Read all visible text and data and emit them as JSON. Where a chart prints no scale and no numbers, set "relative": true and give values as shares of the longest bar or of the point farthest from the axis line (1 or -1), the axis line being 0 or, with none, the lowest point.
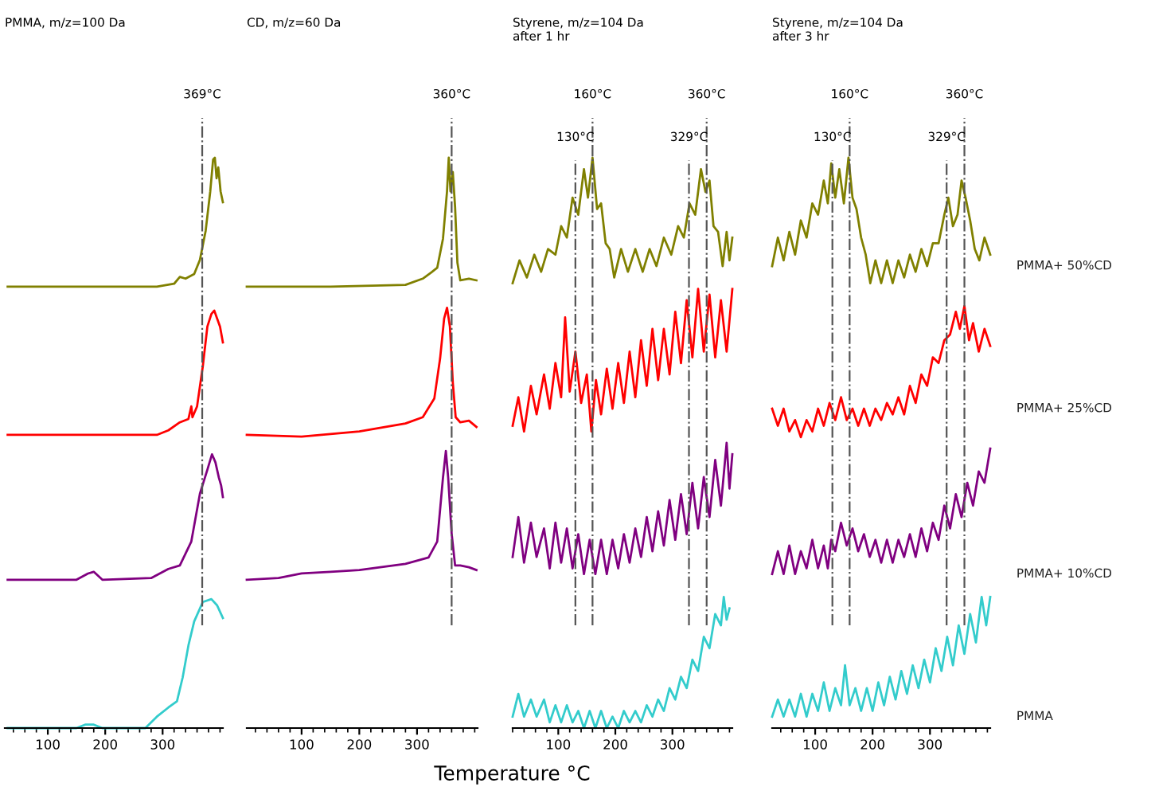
{
  "chart_data": [
    {
      "type": "line",
      "title": "PMMA, m/z=100 Da",
      "relative": true,
      "xlim": [
        25,
        405
      ],
      "xticks": [
        100,
        200,
        300
      ],
      "tick_labels": "x",
      "grid": false,
      "ref_lines": [
        {
          "axis": "x",
          "value": 369,
          "label": "369°C",
          "color": "#555555"
        }
      ],
      "series": [
        {
          "color": "#808000",
          "x": [
            30,
            150,
            290,
            320,
            330,
            340,
            355,
            365,
            375,
            383,
            388,
            391,
            394,
            397,
            401,
            405
          ],
          "values": [
            0.774,
            0.774,
            0.774,
            0.779,
            0.791,
            0.788,
            0.796,
            0.821,
            0.872,
            0.941,
            0.997,
            1.0,
            0.964,
            0.983,
            0.941,
            0.922
          ]
        },
        {
          "color": "#ff0000",
          "x": [
            30,
            150,
            290,
            310,
            330,
            345,
            350,
            352,
            360,
            370,
            378,
            385,
            390,
            395,
            400,
            405
          ],
          "values": [
            0.514,
            0.514,
            0.514,
            0.522,
            0.536,
            0.542,
            0.564,
            0.545,
            0.564,
            0.634,
            0.704,
            0.726,
            0.732,
            0.718,
            0.704,
            0.676
          ]
        },
        {
          "color": "#800080",
          "x": [
            30,
            150,
            170,
            180,
            195,
            280,
            310,
            330,
            350,
            365,
            378,
            386,
            392,
            398,
            402,
            405
          ],
          "values": [
            0.26,
            0.26,
            0.271,
            0.274,
            0.26,
            0.263,
            0.279,
            0.285,
            0.327,
            0.411,
            0.453,
            0.48,
            0.466,
            0.439,
            0.425,
            0.405
          ]
        },
        {
          "color": "#33cccc",
          "x": [
            30,
            150,
            165,
            180,
            195,
            270,
            290,
            310,
            325,
            335,
            345,
            355,
            370,
            385,
            395,
            405
          ],
          "values": [
            0,
            0,
            0.006,
            0.006,
            0,
            0,
            0.02,
            0.036,
            0.047,
            0.089,
            0.145,
            0.187,
            0.221,
            0.226,
            0.215,
            0.193
          ]
        }
      ]
    },
    {
      "type": "line",
      "title": "CD, m/z=60 Da",
      "xlabel": "Temperature °C",
      "relative": true,
      "xlim": [
        5,
        405
      ],
      "xticks": [
        100,
        200,
        300
      ],
      "tick_labels": "x",
      "grid": false,
      "ref_lines": [
        {
          "axis": "x",
          "value": 360,
          "label": "360°C",
          "color": "#555555"
        }
      ],
      "series": [
        {
          "color": "#808000",
          "x": [
            5,
            150,
            280,
            310,
            325,
            335,
            345,
            352,
            355,
            358,
            362,
            366,
            370,
            375,
            390,
            403
          ],
          "values": [
            0.774,
            0.774,
            0.777,
            0.788,
            0.799,
            0.807,
            0.858,
            0.941,
            1.0,
            0.941,
            0.975,
            0.913,
            0.816,
            0.785,
            0.788,
            0.785
          ]
        },
        {
          "color": "#ff0000",
          "x": [
            5,
            100,
            200,
            280,
            310,
            330,
            340,
            347,
            352,
            357,
            362,
            367,
            375,
            390,
            403
          ],
          "values": [
            0.514,
            0.511,
            0.52,
            0.534,
            0.545,
            0.578,
            0.648,
            0.718,
            0.737,
            0.704,
            0.606,
            0.545,
            0.536,
            0.539,
            0.528
          ]
        },
        {
          "color": "#800080",
          "x": [
            5,
            60,
            100,
            150,
            200,
            280,
            320,
            335,
            345,
            350,
            354,
            360,
            366,
            375,
            390,
            403
          ],
          "values": [
            0.26,
            0.263,
            0.271,
            0.274,
            0.277,
            0.288,
            0.299,
            0.327,
            0.439,
            0.486,
            0.439,
            0.341,
            0.285,
            0.285,
            0.282,
            0.277
          ]
        }
      ]
    },
    {
      "type": "line",
      "title": "Styrene, m/z=104 Da\nafter 1 hr",
      "relative": true,
      "xlim": [
        20,
        405
      ],
      "xticks": [
        100,
        200,
        300
      ],
      "tick_labels": "x",
      "grid": false,
      "ref_lines": [
        {
          "axis": "x",
          "value": 160,
          "label": "160°C",
          "color": "#555555"
        },
        {
          "axis": "x",
          "value": 130,
          "label": "130°C",
          "color": "#555555"
        },
        {
          "axis": "x",
          "value": 360,
          "label": "360°C",
          "color": "#555555"
        },
        {
          "axis": "x",
          "value": 329,
          "label": "329°C",
          "color": "#555555"
        }
      ],
      "series": [
        {
          "color": "#808000",
          "x": [
            20,
            32,
            45,
            58,
            70,
            82,
            95,
            105,
            115,
            125,
            135,
            145,
            152,
            160,
            168,
            175,
            183,
            190,
            198,
            210,
            222,
            235,
            248,
            260,
            272,
            285,
            298,
            310,
            320,
            330,
            340,
            350,
            358,
            365,
            372,
            380,
            388,
            395,
            400,
            405
          ],
          "values": [
            0.78,
            0.82,
            0.79,
            0.83,
            0.8,
            0.84,
            0.83,
            0.88,
            0.86,
            0.93,
            0.9,
            0.98,
            0.93,
            1.0,
            0.91,
            0.92,
            0.85,
            0.84,
            0.79,
            0.84,
            0.8,
            0.84,
            0.8,
            0.84,
            0.81,
            0.86,
            0.83,
            0.88,
            0.86,
            0.92,
            0.9,
            0.98,
            0.94,
            0.96,
            0.88,
            0.87,
            0.81,
            0.87,
            0.82,
            0.86
          ]
        },
        {
          "color": "#ff0000",
          "x": [
            20,
            30,
            40,
            52,
            62,
            75,
            85,
            95,
            105,
            112,
            120,
            130,
            140,
            150,
            158,
            166,
            175,
            185,
            195,
            205,
            215,
            225,
            235,
            245,
            255,
            265,
            275,
            285,
            295,
            305,
            315,
            325,
            335,
            345,
            355,
            365,
            375,
            385,
            395,
            405
          ],
          "values": [
            0.53,
            0.58,
            0.52,
            0.6,
            0.55,
            0.62,
            0.56,
            0.64,
            0.58,
            0.72,
            0.59,
            0.66,
            0.57,
            0.62,
            0.52,
            0.61,
            0.55,
            0.63,
            0.56,
            0.64,
            0.57,
            0.66,
            0.58,
            0.68,
            0.6,
            0.7,
            0.61,
            0.7,
            0.62,
            0.73,
            0.64,
            0.75,
            0.65,
            0.77,
            0.66,
            0.76,
            0.65,
            0.75,
            0.66,
            0.77
          ]
        },
        {
          "color": "#800080",
          "x": [
            20,
            30,
            40,
            52,
            62,
            75,
            85,
            95,
            105,
            115,
            125,
            135,
            145,
            155,
            165,
            175,
            185,
            195,
            205,
            215,
            225,
            235,
            245,
            255,
            265,
            275,
            285,
            295,
            305,
            315,
            325,
            335,
            345,
            355,
            365,
            375,
            385,
            395,
            400,
            405
          ],
          "values": [
            0.3,
            0.37,
            0.29,
            0.36,
            0.3,
            0.35,
            0.28,
            0.36,
            0.29,
            0.35,
            0.28,
            0.34,
            0.27,
            0.33,
            0.27,
            0.33,
            0.27,
            0.33,
            0.28,
            0.34,
            0.29,
            0.35,
            0.3,
            0.37,
            0.31,
            0.38,
            0.32,
            0.4,
            0.33,
            0.41,
            0.34,
            0.43,
            0.35,
            0.44,
            0.37,
            0.47,
            0.39,
            0.5,
            0.42,
            0.48
          ]
        },
        {
          "color": "#33cccc",
          "x": [
            20,
            30,
            40,
            52,
            62,
            75,
            85,
            95,
            105,
            115,
            125,
            135,
            145,
            155,
            165,
            175,
            185,
            195,
            205,
            215,
            225,
            235,
            245,
            255,
            265,
            275,
            285,
            295,
            305,
            315,
            325,
            335,
            345,
            355,
            365,
            375,
            385,
            390,
            395,
            400
          ],
          "values": [
            0.02,
            0.06,
            0.02,
            0.05,
            0.02,
            0.05,
            0.01,
            0.04,
            0.01,
            0.04,
            0.01,
            0.03,
            0.0,
            0.03,
            0.0,
            0.03,
            0.0,
            0.02,
            0.0,
            0.03,
            0.01,
            0.03,
            0.01,
            0.04,
            0.02,
            0.05,
            0.03,
            0.07,
            0.05,
            0.09,
            0.07,
            0.12,
            0.1,
            0.16,
            0.14,
            0.2,
            0.18,
            0.23,
            0.19,
            0.21
          ]
        }
      ]
    },
    {
      "type": "line",
      "title": "Styrene, m/z=104 Da\nafter 3 hr",
      "relative": true,
      "xlim": [
        25,
        405
      ],
      "xticks": [
        100,
        200,
        300
      ],
      "tick_labels": "x",
      "grid": false,
      "ref_lines": [
        {
          "axis": "x",
          "value": 160,
          "label": "160°C",
          "color": "#555555"
        },
        {
          "axis": "x",
          "value": 130,
          "label": "130°C",
          "color": "#555555"
        },
        {
          "axis": "x",
          "value": 360,
          "label": "360°C",
          "color": "#555555"
        },
        {
          "axis": "x",
          "value": 329,
          "label": "329°C",
          "color": "#555555"
        }
      ],
      "series": [
        {
          "name": "PMMA+ 50%CD",
          "color": "#808000",
          "x": [
            25,
            35,
            45,
            55,
            65,
            75,
            85,
            95,
            105,
            115,
            122,
            128,
            135,
            142,
            150,
            158,
            165,
            172,
            180,
            188,
            196,
            205,
            215,
            225,
            235,
            245,
            255,
            265,
            275,
            285,
            295,
            305,
            315,
            325,
            332,
            340,
            348,
            355,
            362,
            370,
            378,
            386,
            395,
            405
          ],
          "values": [
            0.81,
            0.86,
            0.82,
            0.87,
            0.83,
            0.89,
            0.86,
            0.92,
            0.9,
            0.96,
            0.92,
            0.99,
            0.93,
            0.98,
            0.92,
            1.0,
            0.93,
            0.91,
            0.86,
            0.83,
            0.78,
            0.82,
            0.78,
            0.82,
            0.78,
            0.82,
            0.79,
            0.83,
            0.8,
            0.84,
            0.81,
            0.85,
            0.85,
            0.9,
            0.93,
            0.88,
            0.9,
            0.96,
            0.93,
            0.89,
            0.84,
            0.82,
            0.86,
            0.83
          ]
        },
        {
          "name": "PMMA+ 25%CD",
          "color": "#ff0000",
          "x": [
            25,
            35,
            45,
            55,
            65,
            75,
            85,
            95,
            105,
            115,
            125,
            135,
            145,
            155,
            165,
            175,
            185,
            195,
            205,
            215,
            225,
            235,
            245,
            255,
            265,
            275,
            285,
            295,
            305,
            315,
            325,
            335,
            345,
            352,
            360,
            368,
            375,
            385,
            395,
            405
          ],
          "values": [
            0.56,
            0.53,
            0.56,
            0.52,
            0.54,
            0.51,
            0.54,
            0.52,
            0.56,
            0.53,
            0.57,
            0.54,
            0.58,
            0.54,
            0.56,
            0.53,
            0.56,
            0.53,
            0.56,
            0.54,
            0.57,
            0.55,
            0.58,
            0.55,
            0.6,
            0.57,
            0.62,
            0.6,
            0.65,
            0.64,
            0.68,
            0.69,
            0.73,
            0.7,
            0.74,
            0.68,
            0.71,
            0.66,
            0.7,
            0.67
          ]
        },
        {
          "name": "PMMA+ 10%CD",
          "color": "#800080",
          "x": [
            25,
            35,
            45,
            55,
            65,
            75,
            85,
            95,
            105,
            115,
            122,
            128,
            135,
            145,
            155,
            165,
            175,
            185,
            195,
            205,
            215,
            225,
            235,
            245,
            255,
            265,
            275,
            285,
            295,
            305,
            315,
            325,
            335,
            345,
            355,
            365,
            375,
            385,
            395,
            405
          ],
          "values": [
            0.27,
            0.31,
            0.27,
            0.32,
            0.27,
            0.31,
            0.28,
            0.33,
            0.28,
            0.32,
            0.28,
            0.33,
            0.31,
            0.36,
            0.32,
            0.35,
            0.31,
            0.34,
            0.3,
            0.33,
            0.29,
            0.33,
            0.29,
            0.33,
            0.3,
            0.34,
            0.3,
            0.35,
            0.31,
            0.36,
            0.33,
            0.39,
            0.35,
            0.41,
            0.37,
            0.43,
            0.39,
            0.45,
            0.43,
            0.49
          ]
        },
        {
          "name": "PMMA",
          "color": "#33cccc",
          "x": [
            25,
            35,
            45,
            55,
            65,
            75,
            85,
            95,
            105,
            115,
            125,
            135,
            145,
            152,
            160,
            170,
            180,
            190,
            200,
            210,
            220,
            230,
            240,
            250,
            260,
            270,
            280,
            290,
            300,
            310,
            320,
            330,
            340,
            350,
            360,
            370,
            380,
            390,
            398,
            405
          ],
          "values": [
            0.02,
            0.05,
            0.02,
            0.05,
            0.02,
            0.06,
            0.02,
            0.06,
            0.03,
            0.08,
            0.03,
            0.07,
            0.04,
            0.11,
            0.04,
            0.07,
            0.03,
            0.07,
            0.03,
            0.08,
            0.04,
            0.09,
            0.05,
            0.1,
            0.06,
            0.11,
            0.07,
            0.12,
            0.08,
            0.14,
            0.1,
            0.16,
            0.11,
            0.18,
            0.13,
            0.2,
            0.15,
            0.23,
            0.18,
            0.23
          ]
        }
      ]
    }
  ]
}
